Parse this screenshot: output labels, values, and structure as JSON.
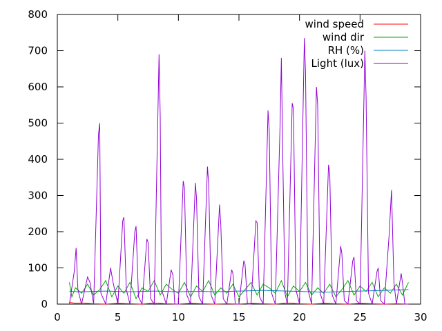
{
  "chart_data": {
    "type": "line",
    "title": "",
    "xlabel": "",
    "ylabel": "",
    "xlim": [
      0,
      30
    ],
    "ylim": [
      0,
      800
    ],
    "xticks": [
      0,
      5,
      10,
      15,
      20,
      25,
      30
    ],
    "yticks": [
      0,
      100,
      200,
      300,
      400,
      500,
      600,
      700,
      800
    ],
    "grid": false,
    "legend_position": "top-right",
    "series": [
      {
        "name": "wind speed",
        "color": "#ff0000",
        "x": [
          1.0,
          1.5,
          2.0,
          3.0,
          4.0,
          5.0,
          6.0,
          7.0,
          8.0,
          9.0,
          10.0,
          11.0,
          12.0,
          13.0,
          14.0,
          15.0,
          16.0,
          17.0,
          18.0,
          19.0,
          20.0,
          21.0,
          22.0,
          23.0,
          24.0,
          25.0,
          26.0,
          27.0,
          28.0,
          29.0
        ],
        "y": [
          5,
          2,
          3,
          1,
          0,
          2,
          1,
          0,
          3,
          1,
          0,
          2,
          1,
          0,
          1,
          0,
          2,
          1,
          0,
          3,
          1,
          0,
          2,
          1,
          0,
          2,
          1,
          0,
          1,
          0
        ]
      },
      {
        "name": "wind dir",
        "color": "#00aa00",
        "x": [
          1.0,
          1.2,
          1.5,
          2.0,
          2.5,
          3.0,
          3.5,
          4.0,
          4.5,
          5.0,
          5.5,
          6.0,
          6.5,
          7.0,
          7.5,
          8.0,
          8.5,
          9.0,
          9.5,
          10.0,
          10.5,
          11.0,
          11.5,
          12.0,
          12.5,
          13.0,
          13.5,
          14.0,
          14.5,
          15.0,
          15.5,
          16.0,
          16.5,
          17.0,
          17.5,
          18.0,
          18.5,
          19.0,
          19.5,
          20.0,
          20.5,
          21.0,
          21.5,
          22.0,
          22.5,
          23.0,
          23.5,
          24.0,
          24.5,
          25.0,
          25.5,
          26.0,
          26.5,
          27.0,
          27.5,
          28.0,
          28.5,
          29.0
        ],
        "y": [
          60,
          20,
          45,
          30,
          55,
          25,
          40,
          65,
          20,
          50,
          30,
          60,
          15,
          45,
          35,
          65,
          25,
          55,
          40,
          30,
          60,
          20,
          50,
          35,
          65,
          25,
          45,
          30,
          55,
          20,
          40,
          60,
          25,
          55,
          45,
          30,
          65,
          20,
          50,
          35,
          60,
          25,
          45,
          30,
          55,
          20,
          40,
          65,
          25,
          50,
          35,
          60,
          20,
          45,
          30,
          55,
          25,
          60
        ]
      },
      {
        "name": "RH (%)",
        "color": "#0080c0",
        "x": [
          1.0,
          2.0,
          3.0,
          4.0,
          5.0,
          6.0,
          7.0,
          8.0,
          9.0,
          10.0,
          11.0,
          12.0,
          13.0,
          14.0,
          15.0,
          16.0,
          17.0,
          18.0,
          19.0,
          20.0,
          21.0,
          22.0,
          23.0,
          24.0,
          25.0,
          26.0,
          27.0,
          28.0,
          29.0
        ],
        "y": [
          35,
          34,
          35,
          36,
          35,
          34,
          35,
          36,
          35,
          34,
          35,
          35,
          34,
          35,
          36,
          37,
          38,
          37,
          36,
          35,
          34,
          33,
          34,
          35,
          36,
          37,
          38,
          39,
          40
        ]
      },
      {
        "name": "Light (lux)",
        "color": "#9400d3",
        "x": [
          1.0,
          1.4,
          1.55,
          1.7,
          2.0,
          2.5,
          2.7,
          3.0,
          3.4,
          3.5,
          3.6,
          4.0,
          4.4,
          4.6,
          5.0,
          5.4,
          5.5,
          5.7,
          6.0,
          6.4,
          6.5,
          6.7,
          7.0,
          7.4,
          7.5,
          7.7,
          8.0,
          8.4,
          8.5,
          8.6,
          9.0,
          9.4,
          9.55,
          9.7,
          10.0,
          10.4,
          10.5,
          10.7,
          11.0,
          11.4,
          11.5,
          11.7,
          12.0,
          12.4,
          12.5,
          12.7,
          13.0,
          13.4,
          13.5,
          13.7,
          14.0,
          14.4,
          14.5,
          14.7,
          15.0,
          15.4,
          15.5,
          15.7,
          16.0,
          16.4,
          16.5,
          16.7,
          17.0,
          17.4,
          17.5,
          17.7,
          18.0,
          18.4,
          18.5,
          18.6,
          18.8,
          19.0,
          19.4,
          19.5,
          19.7,
          20.0,
          20.4,
          20.5,
          20.7,
          21.0,
          21.4,
          21.5,
          21.7,
          22.0,
          22.4,
          22.5,
          22.7,
          23.0,
          23.4,
          23.5,
          23.7,
          24.0,
          24.4,
          24.5,
          24.7,
          25.0,
          25.4,
          25.5,
          25.7,
          26.0,
          26.4,
          26.5,
          26.7,
          27.0,
          27.4,
          27.6,
          27.8,
          28.0,
          28.4,
          28.5,
          28.7,
          29.0
        ],
        "y": [
          0,
          90,
          155,
          40,
          0,
          75,
          60,
          0,
          470,
          500,
          30,
          0,
          100,
          60,
          0,
          230,
          240,
          40,
          0,
          200,
          215,
          20,
          0,
          180,
          170,
          15,
          0,
          690,
          520,
          40,
          0,
          95,
          80,
          0,
          0,
          340,
          320,
          25,
          0,
          335,
          290,
          20,
          0,
          380,
          330,
          25,
          0,
          275,
          220,
          15,
          0,
          95,
          85,
          0,
          0,
          120,
          110,
          0,
          0,
          230,
          225,
          20,
          0,
          535,
          480,
          30,
          0,
          500,
          680,
          450,
          30,
          0,
          555,
          540,
          40,
          0,
          735,
          640,
          40,
          0,
          600,
          550,
          30,
          0,
          385,
          360,
          25,
          0,
          160,
          140,
          10,
          0,
          120,
          130,
          10,
          0,
          700,
          570,
          30,
          0,
          90,
          100,
          10,
          0,
          190,
          315,
          60,
          0,
          85,
          60,
          0,
          0
        ]
      }
    ]
  }
}
